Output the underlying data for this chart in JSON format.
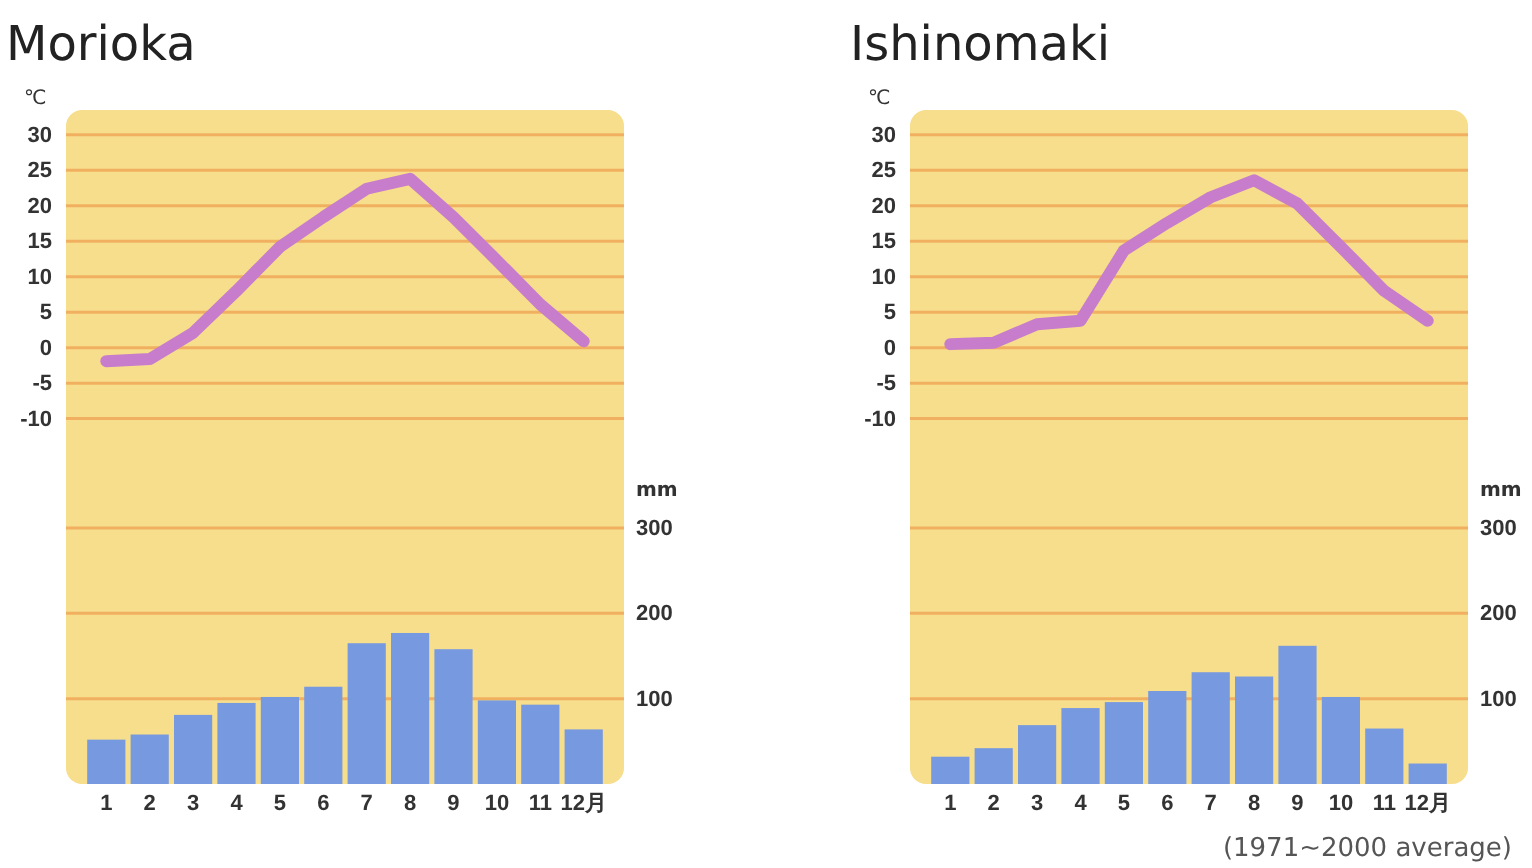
{
  "chart_data": [
    {
      "type": "bar",
      "title": "Morioka",
      "ylabel": "℃",
      "y2label": "mm",
      "categories": [
        "1",
        "2",
        "3",
        "4",
        "5",
        "6",
        "7",
        "8",
        "9",
        "10",
        "11",
        "12月"
      ],
      "series": [
        {
          "axis": "y2",
          "color": "#7799e0",
          "values": [
            52,
            58,
            81,
            95,
            102,
            114,
            165,
            177,
            158,
            98,
            93,
            64
          ]
        },
        {
          "type": "line",
          "axis": "y",
          "color": "#c77dcc",
          "values": [
            -1.9,
            -1.6,
            2.1,
            8,
            14.2,
            18.4,
            22.4,
            23.8,
            18.4,
            12.3,
            6.1,
            0.9
          ]
        }
      ],
      "ylim": [
        -61.5,
        33.5
      ],
      "yticks": [
        -10,
        -5,
        0,
        5,
        10,
        15,
        20,
        25,
        30
      ],
      "y2lim": [
        0,
        790
      ],
      "y2ticks": [
        100,
        200,
        300
      ],
      "grid": "y",
      "marker": "none"
    },
    {
      "type": "bar",
      "title": "Ishinomaki",
      "ylabel": "℃",
      "y2label": "mm",
      "categories": [
        "1",
        "2",
        "3",
        "4",
        "5",
        "6",
        "7",
        "8",
        "9",
        "10",
        "11",
        "12月"
      ],
      "series": [
        {
          "axis": "y2",
          "color": "#7799e0",
          "values": [
            32,
            42,
            69,
            89,
            96,
            109,
            131,
            126,
            162,
            102,
            65,
            24
          ]
        },
        {
          "type": "line",
          "axis": "y",
          "color": "#c77dcc",
          "values": [
            0.5,
            0.7,
            3.3,
            3.8,
            13.7,
            17.6,
            21.2,
            23.6,
            20.3,
            14.2,
            8,
            3.8
          ]
        }
      ],
      "ylim": [
        -61.5,
        33.5
      ],
      "yticks": [
        -10,
        -5,
        0,
        5,
        10,
        15,
        20,
        25,
        30
      ],
      "y2lim": [
        0,
        790
      ],
      "y2ticks": [
        100,
        200,
        300
      ],
      "grid": "y",
      "marker": "none",
      "annotations": [
        "(1971~2000 average)"
      ]
    }
  ]
}
